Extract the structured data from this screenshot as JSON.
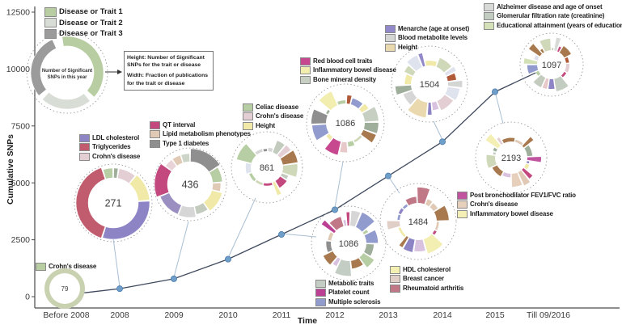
{
  "axes": {
    "y_label": "Cumulative SNPs",
    "x_label": "Time",
    "y_ticks": [
      0,
      2500,
      5000,
      7500,
      10000,
      12500
    ],
    "x_ticks": [
      "Before 2008",
      "2008",
      "2009",
      "2010",
      "2011",
      "2012",
      "2013",
      "2014",
      "2015",
      "Till 09/2016"
    ]
  },
  "main_legend": {
    "items": [
      {
        "label": "Disease or Trait 1",
        "color": "#b8cda2"
      },
      {
        "label": "Disease or Trait 2",
        "color": "#d8ddd6"
      },
      {
        "label": "Disease or Trait 3",
        "color": "#9b9b9b"
      }
    ]
  },
  "explanation": {
    "circle_line1": "Number of Significant",
    "circle_line2": "SNPs in this year",
    "box_line1": "Height: Number of Significant SNPs for the trait or disease",
    "box_line2": "Width: Fraction of publications for the trait or disease",
    "segments": [
      {
        "color": "#b8cda2",
        "a0": -8,
        "a1": 132
      },
      {
        "color": "#d8ddd6",
        "a0": 141,
        "a1": 223
      },
      {
        "color": "#9b9b9b",
        "a0": 231,
        "a1": 336
      }
    ]
  },
  "chart_data": {
    "type": "line",
    "title": "",
    "x": [
      "Before 2008",
      "2008",
      "2009",
      "2010",
      "2011",
      "2012",
      "2013",
      "2014",
      "2015",
      "Till 09/2016"
    ],
    "series": [
      {
        "name": "Cumulative SNPs",
        "values": [
          79,
          350,
          786,
          1647,
          2733,
          3819,
          5303,
          6807,
          9000,
          10097
        ]
      }
    ],
    "new_significant_snps_per_year": [
      79,
      271,
      436,
      861,
      1086,
      1086,
      1484,
      1504,
      2193,
      1097
    ],
    "xlabel": "Time",
    "ylabel": "Cumulative SNPs",
    "ylim": [
      0,
      12500
    ],
    "yticks": [
      0,
      2500,
      5000,
      7500,
      10000,
      12500
    ],
    "grid": false,
    "marker": "circle",
    "line_color": "#3f4a5e",
    "marker_color": "#6f9ec9"
  },
  "year_charts": [
    {
      "year": "Before 2008",
      "total": "79",
      "ring_color": "#c9d2b0",
      "legend": [
        {
          "label": "Crohn's disease",
          "color": "#b8cda2"
        }
      ]
    },
    {
      "year": "2008",
      "total": "271",
      "segments": [
        {
          "color": "#9fae9a",
          "frac": 0.025
        },
        {
          "color": "#e3cfd3",
          "frac": 0.085
        },
        {
          "color": "#f0e9a8",
          "frac": 0.13,
          "out": 45
        },
        {
          "color": "#8d84c6",
          "frac": 0.31,
          "out": 45
        },
        {
          "color": "#c05c6d",
          "frac": 0.4,
          "out": 46
        },
        {
          "color": "#b7cda4",
          "frac": 0.05
        }
      ],
      "legend": [
        {
          "label": "LDL cholesterol",
          "color": "#8d84c6"
        },
        {
          "label": "Triglycerides",
          "color": "#c05c6d"
        },
        {
          "label": "Crohn's disease",
          "color": "#e3cfd3"
        }
      ]
    },
    {
      "year": "2009",
      "total": "436",
      "segments": [
        {
          "color": "#8f8f8f",
          "frac": 0.16,
          "out": 44
        },
        {
          "color": "#b7cda4",
          "frac": 0.08,
          "out": 40
        },
        {
          "color": "#e0cab6",
          "frac": 0.05
        },
        {
          "color": "#f0e9a8",
          "frac": 0.11,
          "out": 41
        },
        {
          "color": "#c2cbbd",
          "frac": 0.07
        },
        {
          "color": "#d6d6d6",
          "frac": 0.09,
          "out": 41
        },
        {
          "color": "#9a8fc0",
          "frac": 0.13,
          "out": 40
        },
        {
          "color": "#c2487e",
          "frac": 0.16,
          "out": 44
        },
        {
          "color": "#e8d3d8",
          "frac": 0.05
        },
        {
          "color": "#e0cab6",
          "frac": 0.05
        },
        {
          "color": "#cdd5c8",
          "frac": 0.05
        }
      ],
      "legend": [
        {
          "label": "QT interval",
          "color": "#c2487e"
        },
        {
          "label": "Lipid metabolism phenotypes",
          "color": "#e0cab6"
        },
        {
          "label": "Type 1 diabetes",
          "color": "#8f8f8f"
        }
      ]
    },
    {
      "year": "2010",
      "total": "861",
      "legend": [
        {
          "label": "Celiac disease",
          "color": "#b7cda4"
        },
        {
          "label": "Crohn's disease",
          "color": "#e3cfd3"
        },
        {
          "label": "Height",
          "color": "#f0e9a8"
        }
      ]
    },
    {
      "year": "2011",
      "total": "1086",
      "legend": [
        {
          "label": "Metabolic traits",
          "color": "#c3cdc4"
        },
        {
          "label": "Platelet count",
          "color": "#bb3f93"
        },
        {
          "label": "Multiple sclerosis",
          "color": "#929bce"
        }
      ]
    },
    {
      "year": "2012",
      "total": "1086",
      "legend": [
        {
          "label": "Red blood cell traits",
          "color": "#c8488f"
        },
        {
          "label": "Inflammatory bowel disease",
          "color": "#f2eeb0"
        },
        {
          "label": "Bone mineral density",
          "color": "#c7cfc3"
        }
      ]
    },
    {
      "year": "2013",
      "total": "1484",
      "legend": [
        {
          "label": "HDL cholesterol",
          "color": "#f3eeb2"
        },
        {
          "label": "Breast cancer",
          "color": "#e0cfc6"
        },
        {
          "label": "Rheumatoid arthritis",
          "color": "#c17886"
        }
      ]
    },
    {
      "year": "2014",
      "total": "1504",
      "legend": [
        {
          "label": "Menarche (age at onset)",
          "color": "#9189c9"
        },
        {
          "label": "Blood metabolite levels",
          "color": "#d3d6d3"
        },
        {
          "label": "Height",
          "color": "#ead9ae"
        }
      ]
    },
    {
      "year": "2015",
      "total": "2193",
      "legend": [
        {
          "label": "Post bronchodilator FEV1/FVC ratio",
          "color": "#c0549f"
        },
        {
          "label": "Crohn's disease",
          "color": "#e6d0bc"
        },
        {
          "label": "Inflammatory bowel disease",
          "color": "#f4f0b5"
        }
      ]
    },
    {
      "year": "Till 09/2016",
      "total": "1097",
      "legend": [
        {
          "label": "Alzheimer disease and age of onset",
          "color": "#d7dad7"
        },
        {
          "label": "Glomerular filtration rate (creatinine)",
          "color": "#c3ccc0"
        },
        {
          "label": "Educational attainment (years of education)",
          "color": "#d3e0b8"
        }
      ]
    }
  ],
  "petal_palette": [
    "#a8794e",
    "#8f8f8f",
    "#b7cda4",
    "#e3cfd3",
    "#f0e9a8",
    "#8d84c6",
    "#c2487e",
    "#c2cbbd",
    "#d6d6d6",
    "#e0cab6",
    "#929bce",
    "#c17886",
    "#dfe3ee",
    "#e8c9c9",
    "#b05a3a",
    "#cfd8b8",
    "#9fae9a",
    "#d9c2e0"
  ]
}
